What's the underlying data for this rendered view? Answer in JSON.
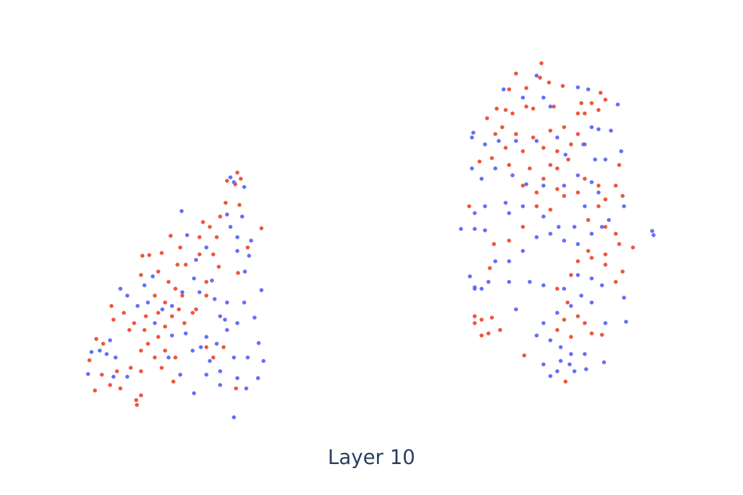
{
  "chart_data": {
    "type": "scatter",
    "title": "Layer 10",
    "xlim": [
      0,
      108
    ],
    "ylim": [
      0,
      72
    ],
    "series": [
      {
        "color": "#ef553b",
        "x": [
          34.5,
          33,
          35,
          34.2,
          32.8,
          34.8,
          32,
          29.5,
          38,
          31.5,
          30.5,
          29,
          26.2,
          24.8,
          23.5,
          21.7,
          20.7,
          20.5,
          23,
          25.8,
          27,
          24.5,
          25.5,
          26.5,
          24,
          22.5,
          26,
          25,
          23,
          21.2,
          19.5,
          18,
          16.2,
          16.5,
          18.8,
          21,
          24,
          23,
          21.5,
          20.5,
          22.5,
          24,
          25.5,
          23.5,
          20.5,
          19,
          17,
          16,
          14.8,
          14,
          15,
          13,
          13.8,
          17.5,
          19.8,
          20.5,
          19.9,
          25.2,
          28,
          30,
          31.8,
          34.6,
          36,
          31,
          30,
          32.5,
          34.3,
          30,
          28.5,
          26.8,
          29,
          31,
          78.7,
          75,
          78.5,
          79.8,
          76.5,
          74,
          81.8,
          87.3,
          88,
          86,
          84.5,
          85,
          87,
          84,
          80.5,
          77.5,
          76.5,
          74.5,
          72.2,
          73.5,
          70.8,
          73,
          72,
          75,
          77.5,
          80,
          82,
          84,
          85,
          83,
          81,
          79,
          76,
          73.5,
          71.5,
          74,
          77,
          80,
          82.6,
          85,
          87,
          88,
          90,
          89.5,
          90.5,
          87,
          85.5,
          88,
          89.5,
          90,
          92,
          88,
          86,
          84,
          83,
          81,
          82.5,
          84,
          82,
          81,
          83,
          85,
          86,
          87.5,
          89.5,
          90.5,
          88,
          85.5,
          69,
          70,
          71.5,
          71,
          70,
          72.7,
          69,
          76.2,
          82.2,
          68.2,
          69.7,
          71.2,
          71.8,
          74,
          76,
          78,
          80,
          82,
          84,
          81,
          78,
          76,
          79,
          81
        ],
        "values": [
          46.9,
          45.7,
          46,
          45.2,
          42.5,
          42.2,
          40.5,
          39.7,
          38.8,
          37.5,
          39,
          35,
          36,
          37.7,
          35.2,
          34.9,
          34.8,
          32,
          32.5,
          33.5,
          33.5,
          31,
          30,
          29,
          28,
          29,
          27,
          26,
          26.5,
          26,
          25,
          26.5,
          27.5,
          25.5,
          24,
          24,
          24.5,
          23,
          22,
          21,
          20,
          21,
          20,
          18.5,
          18,
          18.5,
          18,
          16,
          17.5,
          22.7,
          22,
          19.6,
          15.2,
          15.5,
          13.8,
          14.5,
          13.1,
          16.5,
          26.5,
          29,
          33.2,
          32.3,
          36,
          20,
          21.5,
          21.5,
          15.5,
          31,
          27,
          25,
          37.5,
          35,
          62.8,
          61.3,
          60.7,
          60,
          59.2,
          59,
          59.5,
          58.5,
          57.5,
          57,
          57,
          55.5,
          56,
          55.5,
          56.5,
          56.2,
          56.5,
          55.5,
          56.2,
          56,
          54.8,
          53.5,
          52.5,
          52.5,
          52,
          53,
          53.5,
          52.5,
          51,
          51,
          50,
          50.5,
          50,
          50.5,
          49,
          48,
          47.5,
          48,
          48.8,
          46,
          45,
          43,
          48,
          45,
          43.5,
          42,
          40,
          39,
          38,
          36.5,
          36,
          35,
          34.5,
          34,
          32,
          30,
          28,
          26,
          25.5,
          24,
          23,
          25,
          23.5,
          23.3,
          31,
          32.5,
          33.5,
          35.5,
          26,
          25.5,
          25.8,
          23.5,
          23.2,
          24,
          25,
          20.3,
          16.5,
          42,
          48.5,
          33,
          36.5,
          37,
          39,
          42,
          41.5,
          43.5,
          44,
          44.5,
          44,
          45,
          46,
          47.5
        ]
      },
      {
        "color": "#636efa",
        "x": [
          26.4,
          33.5,
          35.5,
          34,
          33,
          35.2,
          33.5,
          34.5,
          36.5,
          34.5,
          36.2,
          30,
          28.5,
          27.2,
          30.8,
          28.2,
          26.5,
          29,
          31.2,
          33,
          35.5,
          38,
          37,
          34.5,
          33,
          32,
          30,
          31.5,
          29.2,
          30.5,
          32,
          34,
          36,
          38.3,
          37.5,
          35.8,
          34.5,
          32,
          30,
          28.2,
          26.2,
          24.5,
          28,
          27,
          25,
          22.5,
          21.5,
          20,
          18.5,
          17.5,
          21,
          22.2,
          25,
          23.6,
          16,
          14.5,
          13.3,
          12.8,
          15.5,
          16.5,
          18.5,
          16.8,
          34,
          37.6,
          35.6,
          32.7,
          78,
          73.2,
          76,
          79,
          80,
          84,
          85.5,
          89.8,
          88.8,
          86,
          87,
          84.8,
          82.2,
          81,
          78,
          75,
          72.5,
          70.5,
          68.8,
          68.6,
          68.6,
          70,
          72,
          74.5,
          76.5,
          79,
          82,
          84,
          86,
          86.5,
          88,
          90.3,
          90.7,
          88.5,
          87.5,
          86,
          84,
          82,
          80,
          78,
          76,
          74,
          72,
          70.5,
          69,
          67,
          69,
          70.5,
          73.5,
          74,
          76,
          79,
          81.2,
          83.5,
          85,
          87,
          94.8,
          95,
          68.3,
          69,
          71,
          74,
          77,
          79,
          82,
          84,
          86,
          87.5,
          90.7,
          91,
          88,
          86,
          84.5,
          83,
          81,
          79,
          78,
          80,
          81.5,
          83,
          85,
          82.8,
          81,
          80,
          79,
          81.5,
          83.5,
          85.2,
          87.8,
          69,
          70,
          75
        ],
        "values": [
          41.3,
          46.2,
          44.8,
          45.5,
          40.8,
          40.5,
          39,
          37.5,
          37,
          35.5,
          34.8,
          36,
          34.2,
          37.8,
          31.2,
          31.5,
          29.5,
          29.5,
          28.5,
          28,
          28,
          29.8,
          25.8,
          25,
          24,
          26,
          23,
          22,
          21.5,
          19.5,
          18,
          20,
          20,
          19.5,
          17,
          15.5,
          17,
          16,
          17.5,
          14.8,
          17.5,
          20,
          21,
          23.5,
          23.2,
          25,
          28,
          27.5,
          29,
          30,
          30.5,
          31.8,
          27.5,
          27,
          22.5,
          21,
          20.8,
          17.6,
          20.5,
          17.2,
          17.2,
          20,
          11.3,
          22.1,
          32.5,
          25.5,
          61,
          59,
          57.8,
          57.8,
          56.5,
          59.3,
          59,
          56.8,
          53,
          53.5,
          53.2,
          51,
          49.5,
          52,
          51.5,
          51.5,
          51.5,
          51,
          52.7,
          52,
          47.5,
          46,
          47.5,
          46.5,
          45.2,
          45,
          45,
          46.5,
          45.5,
          48.8,
          48.8,
          50,
          42,
          40,
          39,
          38,
          36.5,
          37,
          38,
          37.5,
          35.5,
          34,
          34,
          38.5,
          38.7,
          38.7,
          41,
          42,
          42.5,
          41,
          42,
          40.5,
          39,
          39,
          42,
          44,
          38.4,
          37.8,
          31.8,
          30.2,
          31,
          31,
          31,
          30.5,
          30,
          32,
          31.5,
          30.5,
          28.7,
          25.2,
          25,
          28,
          29,
          27.5,
          26.5,
          25,
          23.2,
          22.5,
          21.5,
          20.5,
          20.5,
          19,
          18,
          17.3,
          19,
          19.5,
          18,
          18.3,
          19.3,
          30,
          30,
          27
        ]
      }
    ]
  }
}
